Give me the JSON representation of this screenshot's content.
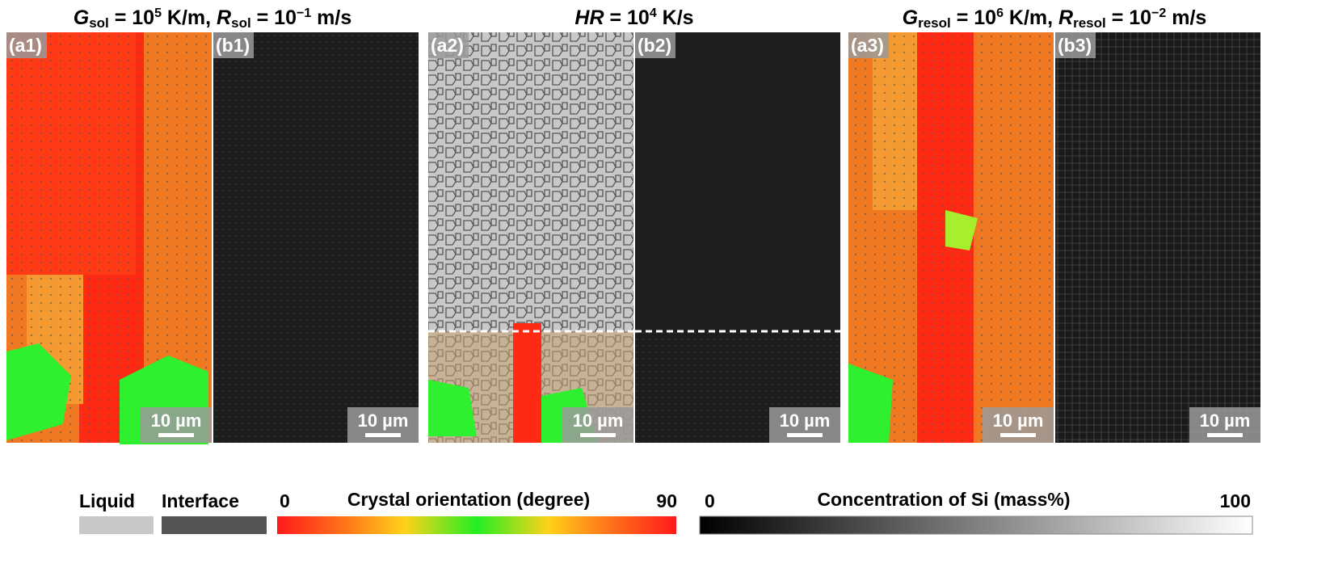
{
  "groups": [
    {
      "title": [
        "G",
        "sol",
        " = 10",
        "5",
        " K/m, ",
        "R",
        "sol",
        " = 10",
        "−1",
        " m/s"
      ],
      "panels": [
        {
          "label": "(a1)",
          "scale": "10 µm"
        },
        {
          "label": "(b1)",
          "scale": "10 µm"
        }
      ]
    },
    {
      "title": [
        "HR",
        " = 10",
        "4",
        " K/s"
      ],
      "panels": [
        {
          "label": "(a2)",
          "scale": "10 µm"
        },
        {
          "label": "(b2)",
          "scale": "10 µm"
        }
      ]
    },
    {
      "title": [
        "G",
        "resol",
        " = 10",
        "6",
        " K/m, ",
        "R",
        "resol",
        " = 10",
        "−2",
        " m/s"
      ],
      "panels": [
        {
          "label": "(a3)",
          "scale": "10 µm"
        },
        {
          "label": "(b3)",
          "scale": "10 µm"
        }
      ]
    }
  ],
  "legend": {
    "liquid": "Liquid",
    "interface": "Interface",
    "orientation": {
      "title": "Crystal orientation (degree)",
      "min": "0",
      "max": "90"
    },
    "concentration": {
      "title": "Concentration of Si (mass%)",
      "min": "0",
      "max": "100"
    }
  }
}
